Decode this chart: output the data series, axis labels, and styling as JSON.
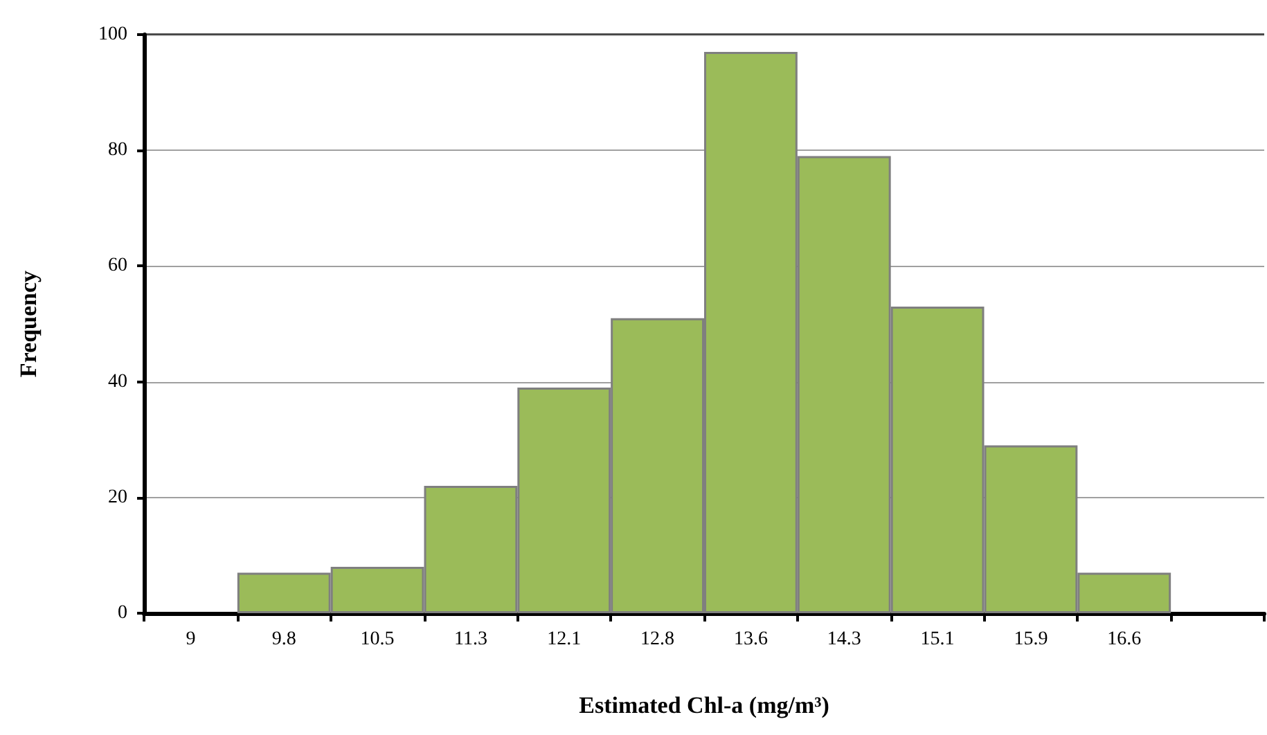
{
  "chart_data": {
    "type": "bar",
    "xlabel": "Estimated Chl-a (mg/m³)",
    "ylabel": "Frequency",
    "categories": [
      "9",
      "9.8",
      "10.5",
      "11.3",
      "12.1",
      "12.8",
      "13.6",
      "14.3",
      "15.1",
      "15.9",
      "16.6",
      null
    ],
    "values": [
      null,
      7,
      8,
      22,
      39,
      51,
      97,
      79,
      53,
      29,
      7,
      null
    ],
    "color": "#9bbb59",
    "ylim": [
      0,
      100
    ],
    "yticks": [
      0,
      20,
      40,
      60,
      80,
      100
    ],
    "grid": "y"
  }
}
